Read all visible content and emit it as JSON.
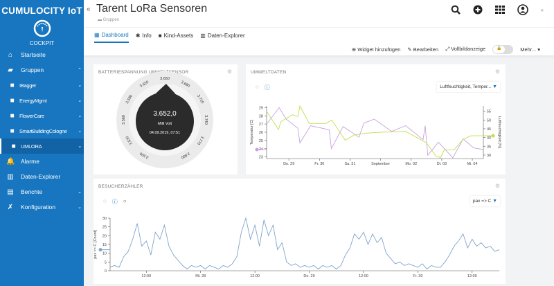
{
  "app": {
    "brand": "CUMULOCITY IoT",
    "app_name": "COCKPIT"
  },
  "sidebar": {
    "items": [
      {
        "label": "Startseite",
        "icon": "home-icon"
      },
      {
        "label": "Gruppen",
        "icon": "folder-open-icon",
        "chevron": "up"
      },
      {
        "label": "IBagger",
        "icon": "folder-icon",
        "sub": true
      },
      {
        "label": "EnergyMgmt",
        "icon": "folder-icon",
        "sub": true
      },
      {
        "label": "FlowerCare",
        "icon": "folder-icon",
        "sub": true
      },
      {
        "label": "SmartBuildingCologne",
        "icon": "folder-icon",
        "sub": true
      },
      {
        "label": "UMLORA",
        "icon": "folder-icon",
        "sub": true,
        "active": true
      },
      {
        "label": "Alarme",
        "icon": "bell-icon"
      },
      {
        "label": "Daten-Explorer",
        "icon": "bar-chart-icon"
      },
      {
        "label": "Berichte",
        "icon": "report-icon",
        "chevron": "down"
      },
      {
        "label": "Konfiguration",
        "icon": "wrench-icon",
        "chevron": "down"
      }
    ]
  },
  "header": {
    "title": "Tarent LoRa Sensoren",
    "breadcrumb": "Gruppen"
  },
  "tabs": [
    {
      "label": "Dashboard",
      "icon": "grid-icon",
      "active": true
    },
    {
      "label": "Info",
      "icon": "asterisk-icon"
    },
    {
      "label": "Kind-Assets",
      "icon": "folder-icon"
    },
    {
      "label": "Daten-Explorer",
      "icon": "bar-chart-icon"
    }
  ],
  "toolbar": {
    "add_widget": "Widget hinzufügen",
    "edit": "Bearbeiten",
    "fullscreen": "Vollbildanzeige",
    "more": "Mehr..."
  },
  "widgets": {
    "battery": {
      "title": "BATTERIESPANNUNG UMWELTSENSOR",
      "value": "3.652,0",
      "unit": "Milli Volt",
      "timestamp": "04.09.2019, 07:51"
    },
    "env": {
      "title": "UMWELTDATEN",
      "selector": "Luftfeuchtigkeit, Temper..."
    },
    "visitors": {
      "title": "BESUCHERZÄHLER",
      "selector": "pax => C"
    }
  },
  "colors": {
    "brand": "#1776bf",
    "temperature": "#c9a0e0",
    "humidity": "#bfe04a",
    "visitors": "#7fa3cc"
  },
  "chart_data": [
    {
      "type": "gauge",
      "ticks": [
        "3.500",
        "3.530",
        "3.560",
        "3.590",
        "3.620",
        "3.650",
        "3.680",
        "3.710",
        "3.740",
        "3.770",
        "3.800"
      ],
      "min": 3500,
      "max": 3800,
      "value": 3652.0
    },
    {
      "type": "line",
      "xticks": [
        [
          "2019-08-29T00:00",
          "Do. 29"
        ],
        [
          "2019-08-30T00:00",
          "Fr. 30"
        ],
        [
          "2019-08-31T00:00",
          "Sa. 31"
        ],
        [
          "2019-09-01T00:00",
          "September"
        ],
        [
          "2019-09-02T00:00",
          "Mo. 02"
        ],
        [
          "2019-09-03T00:00",
          "Di. 03"
        ],
        [
          "2019-09-04T00:00",
          "Mi. 04"
        ]
      ],
      "xlim": [
        "2019-08-28T06:30",
        "2019-09-04T08:40"
      ],
      "ylabel_left": "Temperatur [C]",
      "ylim_left": [
        22.8,
        29.2
      ],
      "yticks_left": [
        23,
        24,
        25,
        26,
        27,
        28,
        29
      ],
      "ylabel_right": "Luftfeuchtigkeit [%]",
      "ylim_right": [
        28,
        58
      ],
      "yticks_right": [
        30,
        35,
        40,
        45,
        50,
        55
      ],
      "series": [
        {
          "axis": "left",
          "points": [
            [
              "2019-08-28T06:30",
              27.0
            ],
            [
              "2019-08-28T16:20",
              29.0
            ],
            [
              "2019-08-28T21:50",
              27.6
            ],
            [
              "2019-08-29T07:00",
              26.5
            ],
            [
              "2019-08-29T08:40",
              24.7
            ],
            [
              "2019-08-29T17:00",
              26.8
            ],
            [
              "2019-08-30T07:40",
              26.3
            ],
            [
              "2019-08-30T09:20",
              24.0
            ],
            [
              "2019-08-30T18:30",
              26.7
            ],
            [
              "2019-08-31T07:00",
              25.4
            ],
            [
              "2019-08-31T10:50",
              27.1
            ],
            [
              "2019-08-31T19:00",
              27.6
            ],
            [
              "2019-09-01T08:40",
              26.1
            ],
            [
              "2019-09-01T19:40",
              26.8
            ],
            [
              "2019-09-02T09:20",
              25.1
            ],
            [
              "2019-09-02T11:00",
              26.8
            ],
            [
              "2019-09-02T13:00",
              23.2
            ],
            [
              "2019-09-02T21:20",
              24.8
            ],
            [
              "2019-09-03T08:40",
              22.9
            ],
            [
              "2019-09-03T16:50",
              25.2
            ],
            [
              "2019-09-04T01:00",
              24.1
            ],
            [
              "2019-09-04T08:40",
              23.9
            ]
          ]
        },
        {
          "axis": "right",
          "points": [
            [
              "2019-08-28T06:30",
              55
            ],
            [
              "2019-08-28T15:50",
              44.5
            ],
            [
              "2019-08-28T17:40",
              49
            ],
            [
              "2019-08-29T02:40",
              53
            ],
            [
              "2019-08-29T07:00",
              52
            ],
            [
              "2019-08-29T08:40",
              58
            ],
            [
              "2019-08-29T16:00",
              48
            ],
            [
              "2019-08-30T05:00",
              48
            ],
            [
              "2019-08-30T09:40",
              50
            ],
            [
              "2019-08-30T20:10",
              38.5
            ],
            [
              "2019-08-31T03:30",
              41.5
            ],
            [
              "2019-08-31T12:40",
              42.5
            ],
            [
              "2019-09-01T00:00",
              43
            ],
            [
              "2019-09-01T19:40",
              43.5
            ],
            [
              "2019-09-02T12:00",
              37
            ],
            [
              "2019-09-02T19:20",
              29.5
            ],
            [
              "2019-09-02T23:00",
              28.5
            ],
            [
              "2019-09-03T02:00",
              33
            ],
            [
              "2019-09-03T09:40",
              33
            ],
            [
              "2019-09-03T16:50",
              39
            ],
            [
              "2019-09-03T23:00",
              41
            ],
            [
              "2019-09-04T08:40",
              41
            ]
          ]
        }
      ]
    },
    {
      "type": "line",
      "ylabel": "pax => C [Count]",
      "ylim": [
        0,
        30
      ],
      "yticks": [
        0,
        5,
        10,
        15,
        20,
        25,
        30
      ],
      "xlim": [
        "2019-08-27T04:00",
        "2019-08-30T18:00"
      ],
      "xticks": [
        [
          "2019-08-27T12:00",
          "12:00"
        ],
        [
          "2019-08-28T00:00",
          "Mi. 28"
        ],
        [
          "2019-08-28T12:00",
          "12:00"
        ],
        [
          "2019-08-29T00:00",
          "Do. 29"
        ],
        [
          "2019-08-29T12:00",
          "12:00"
        ],
        [
          "2019-08-30T00:00",
          "Fr. 30"
        ],
        [
          "2019-08-30T12:00",
          "12:00"
        ]
      ],
      "series": [
        {
          "points": [
            [
              "2019-08-27T04:00",
              2
            ],
            [
              "2019-08-27T05:00",
              3
            ],
            [
              "2019-08-27T06:00",
              2
            ],
            [
              "2019-08-27T07:00",
              8
            ],
            [
              "2019-08-27T08:00",
              11
            ],
            [
              "2019-08-27T09:00",
              18
            ],
            [
              "2019-08-27T10:00",
              27
            ],
            [
              "2019-08-27T11:00",
              14
            ],
            [
              "2019-08-27T12:00",
              17
            ],
            [
              "2019-08-27T13:00",
              9
            ],
            [
              "2019-08-27T14:00",
              22
            ],
            [
              "2019-08-27T15:00",
              18
            ],
            [
              "2019-08-27T16:00",
              26
            ],
            [
              "2019-08-27T17:00",
              14
            ],
            [
              "2019-08-27T18:00",
              9
            ],
            [
              "2019-08-27T19:00",
              6
            ],
            [
              "2019-08-27T20:00",
              3
            ],
            [
              "2019-08-27T21:00",
              1
            ],
            [
              "2019-08-27T22:00",
              3
            ],
            [
              "2019-08-27T23:00",
              2
            ],
            [
              "2019-08-28T00:00",
              3
            ],
            [
              "2019-08-28T01:00",
              1
            ],
            [
              "2019-08-28T02:00",
              3
            ],
            [
              "2019-08-28T03:00",
              2
            ],
            [
              "2019-08-28T04:00",
              1
            ],
            [
              "2019-08-28T05:00",
              3
            ],
            [
              "2019-08-28T06:00",
              2
            ],
            [
              "2019-08-28T07:00",
              4
            ],
            [
              "2019-08-28T08:00",
              8
            ],
            [
              "2019-08-28T09:00",
              22
            ],
            [
              "2019-08-28T10:00",
              30
            ],
            [
              "2019-08-28T11:00",
              18
            ],
            [
              "2019-08-28T12:00",
              26
            ],
            [
              "2019-08-28T13:00",
              14
            ],
            [
              "2019-08-28T14:00",
              29
            ],
            [
              "2019-08-28T15:00",
              20
            ],
            [
              "2019-08-28T16:00",
              26
            ],
            [
              "2019-08-28T17:00",
              12
            ],
            [
              "2019-08-28T18:00",
              16
            ],
            [
              "2019-08-28T19:00",
              5
            ],
            [
              "2019-08-28T20:00",
              3
            ],
            [
              "2019-08-28T21:00",
              4
            ],
            [
              "2019-08-28T22:00",
              2
            ],
            [
              "2019-08-28T23:00",
              3
            ],
            [
              "2019-08-29T00:00",
              2
            ],
            [
              "2019-08-29T01:00",
              3
            ],
            [
              "2019-08-29T02:00",
              1
            ],
            [
              "2019-08-29T03:00",
              3
            ],
            [
              "2019-08-29T04:00",
              2
            ],
            [
              "2019-08-29T05:00",
              3
            ],
            [
              "2019-08-29T06:00",
              1
            ],
            [
              "2019-08-29T07:00",
              3
            ],
            [
              "2019-08-29T08:00",
              9
            ],
            [
              "2019-08-29T09:00",
              13
            ],
            [
              "2019-08-29T10:00",
              21
            ],
            [
              "2019-08-29T11:00",
              18
            ],
            [
              "2019-08-29T12:00",
              22
            ],
            [
              "2019-08-29T13:00",
              15
            ],
            [
              "2019-08-29T14:00",
              21
            ],
            [
              "2019-08-29T15:00",
              16
            ],
            [
              "2019-08-29T16:00",
              19
            ],
            [
              "2019-08-29T17:00",
              10
            ],
            [
              "2019-08-29T18:00",
              7
            ],
            [
              "2019-08-29T19:00",
              4
            ],
            [
              "2019-08-29T20:00",
              5
            ],
            [
              "2019-08-29T21:00",
              3
            ],
            [
              "2019-08-29T22:00",
              4
            ],
            [
              "2019-08-29T23:00",
              3
            ],
            [
              "2019-08-30T00:00",
              2
            ],
            [
              "2019-08-30T01:00",
              4
            ],
            [
              "2019-08-30T02:00",
              1
            ],
            [
              "2019-08-30T03:00",
              3
            ],
            [
              "2019-08-30T04:00",
              2
            ],
            [
              "2019-08-30T05:00",
              2
            ],
            [
              "2019-08-30T06:00",
              5
            ],
            [
              "2019-08-30T07:00",
              9
            ],
            [
              "2019-08-30T08:00",
              14
            ],
            [
              "2019-08-30T09:00",
              17
            ],
            [
              "2019-08-30T10:00",
              21
            ],
            [
              "2019-08-30T11:00",
              13
            ],
            [
              "2019-08-30T12:00",
              18
            ],
            [
              "2019-08-30T13:00",
              14
            ],
            [
              "2019-08-30T14:00",
              16
            ],
            [
              "2019-08-30T15:00",
              13
            ],
            [
              "2019-08-30T16:00",
              14
            ],
            [
              "2019-08-30T17:00",
              11
            ],
            [
              "2019-08-30T18:00",
              12
            ]
          ]
        }
      ]
    }
  ]
}
